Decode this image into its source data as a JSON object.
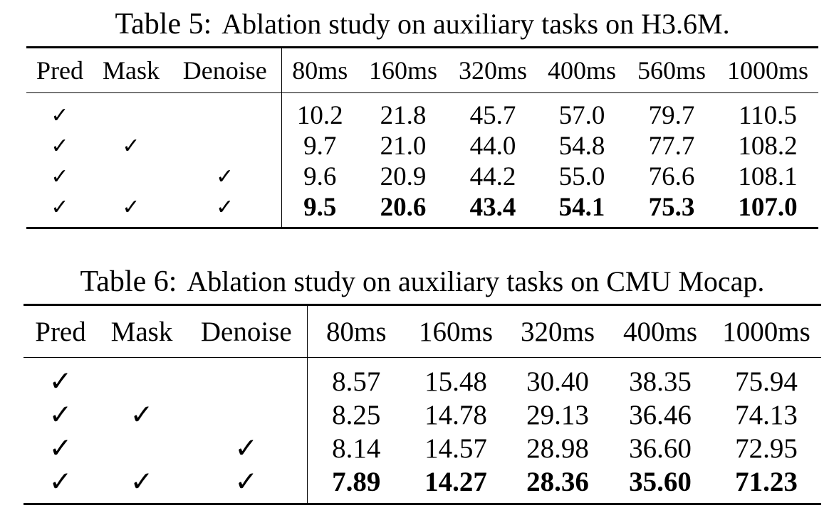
{
  "tables": [
    {
      "caption_label": "Table 5:",
      "caption_text": "Ablation study on auxiliary tasks on H3.6M.",
      "headers": [
        "Pred",
        "Mask",
        "Denoise",
        "80ms",
        "160ms",
        "320ms",
        "400ms",
        "560ms",
        "1000ms"
      ],
      "rows": [
        {
          "pred": "✓",
          "mask": "",
          "denoise": "",
          "values": [
            "10.2",
            "21.8",
            "45.7",
            "57.0",
            "79.7",
            "110.5"
          ],
          "bold": false
        },
        {
          "pred": "✓",
          "mask": "✓",
          "denoise": "",
          "values": [
            "9.7",
            "21.0",
            "44.0",
            "54.8",
            "77.7",
            "108.2"
          ],
          "bold": false
        },
        {
          "pred": "✓",
          "mask": "",
          "denoise": "✓",
          "values": [
            "9.6",
            "20.9",
            "44.2",
            "55.0",
            "76.6",
            "108.1"
          ],
          "bold": false
        },
        {
          "pred": "✓",
          "mask": "✓",
          "denoise": "✓",
          "values": [
            "9.5",
            "20.6",
            "43.4",
            "54.1",
            "75.3",
            "107.0"
          ],
          "bold": true
        }
      ]
    },
    {
      "caption_label": "Table 6:",
      "caption_text": "Ablation study on auxiliary tasks on CMU Mocap.",
      "headers": [
        "Pred",
        "Mask",
        "Denoise",
        "80ms",
        "160ms",
        "320ms",
        "400ms",
        "1000ms"
      ],
      "rows": [
        {
          "pred": "✓",
          "mask": "",
          "denoise": "",
          "values": [
            "8.57",
            "15.48",
            "30.40",
            "38.35",
            "75.94"
          ],
          "bold": false
        },
        {
          "pred": "✓",
          "mask": "✓",
          "denoise": "",
          "values": [
            "8.25",
            "14.78",
            "29.13",
            "36.46",
            "74.13"
          ],
          "bold": false
        },
        {
          "pred": "✓",
          "mask": "",
          "denoise": "✓",
          "values": [
            "8.14",
            "14.57",
            "28.98",
            "36.60",
            "72.95"
          ],
          "bold": false
        },
        {
          "pred": "✓",
          "mask": "✓",
          "denoise": "✓",
          "values": [
            "7.89",
            "14.27",
            "28.36",
            "35.60",
            "71.23"
          ],
          "bold": true
        }
      ]
    }
  ]
}
